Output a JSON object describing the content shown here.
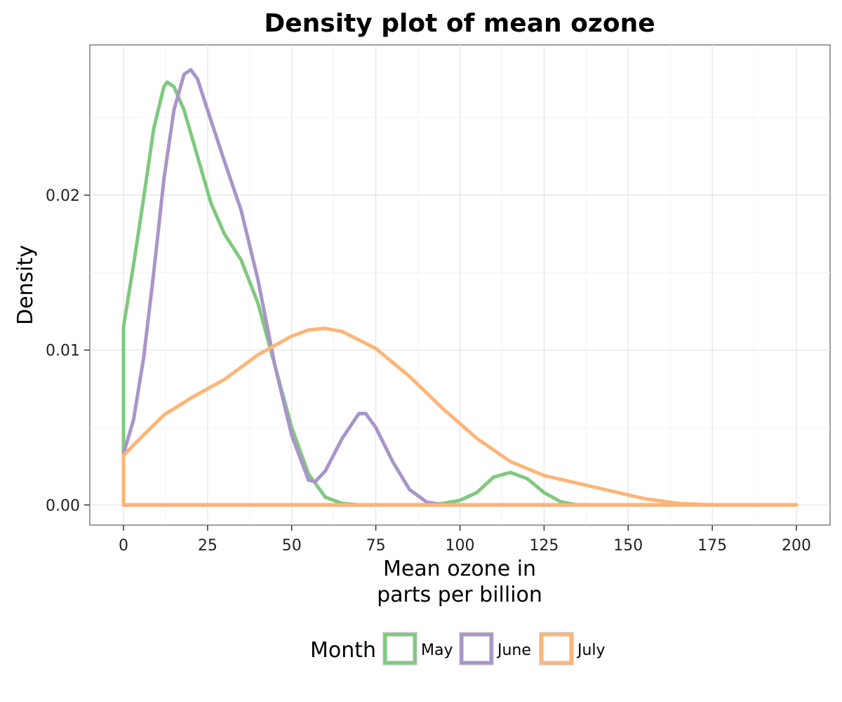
{
  "chart_data": {
    "type": "line",
    "title": "Density plot of mean ozone",
    "xlabel_lines": [
      "Mean ozone in",
      "parts per billion"
    ],
    "ylabel": "Density",
    "xlim": [
      -10,
      210
    ],
    "ylim": [
      -0.0013,
      0.0297
    ],
    "x_ticks": [
      0,
      25,
      50,
      75,
      100,
      125,
      150,
      175,
      200
    ],
    "x_tick_labels": [
      "0",
      "25",
      "50",
      "75",
      "100",
      "125",
      "150",
      "175",
      "200"
    ],
    "y_ticks": [
      0,
      0.01,
      0.02
    ],
    "y_tick_labels": [
      "0.00",
      "0.01",
      "0.02"
    ],
    "grid": true,
    "legend": {
      "title": "Month",
      "position": "bottom"
    },
    "series": [
      {
        "name": "May",
        "color": "#7fc97f",
        "points": [
          [
            0,
            0
          ],
          [
            0,
            0.0115
          ],
          [
            3,
            0.0155
          ],
          [
            6,
            0.0198
          ],
          [
            9,
            0.0243
          ],
          [
            12,
            0.027
          ],
          [
            13,
            0.0273
          ],
          [
            15,
            0.027
          ],
          [
            18,
            0.0255
          ],
          [
            22,
            0.0225
          ],
          [
            26,
            0.0195
          ],
          [
            30,
            0.0175
          ],
          [
            35,
            0.0158
          ],
          [
            40,
            0.013
          ],
          [
            45,
            0.009
          ],
          [
            50,
            0.005
          ],
          [
            55,
            0.002
          ],
          [
            60,
            0.0005
          ],
          [
            65,
            0.0001
          ],
          [
            70,
            0.0
          ],
          [
            80,
            0.0
          ],
          [
            90,
            0.0
          ],
          [
            95,
            0.0001
          ],
          [
            100,
            0.0003
          ],
          [
            105,
            0.0008
          ],
          [
            110,
            0.0018
          ],
          [
            115,
            0.0021
          ],
          [
            120,
            0.0017
          ],
          [
            125,
            0.0008
          ],
          [
            130,
            0.0002
          ],
          [
            135,
            0.0
          ],
          [
            200,
            0.0
          ],
          [
            0,
            0
          ]
        ]
      },
      {
        "name": "June",
        "color": "#a995c9",
        "points": [
          [
            0,
            0
          ],
          [
            0,
            0.0033
          ],
          [
            3,
            0.0055
          ],
          [
            6,
            0.0095
          ],
          [
            9,
            0.015
          ],
          [
            12,
            0.021
          ],
          [
            15,
            0.0255
          ],
          [
            18,
            0.0278
          ],
          [
            20,
            0.0281
          ],
          [
            22,
            0.0275
          ],
          [
            25,
            0.0255
          ],
          [
            30,
            0.0222
          ],
          [
            35,
            0.019
          ],
          [
            40,
            0.0145
          ],
          [
            45,
            0.009
          ],
          [
            50,
            0.0045
          ],
          [
            55,
            0.0016
          ],
          [
            57,
            0.0015
          ],
          [
            60,
            0.0022
          ],
          [
            65,
            0.0043
          ],
          [
            70,
            0.0059
          ],
          [
            72,
            0.0059
          ],
          [
            75,
            0.005
          ],
          [
            80,
            0.0028
          ],
          [
            85,
            0.001
          ],
          [
            90,
            0.0002
          ],
          [
            95,
            0.0
          ],
          [
            200,
            0.0
          ],
          [
            0,
            0
          ]
        ]
      },
      {
        "name": "July",
        "color": "#fdb577",
        "points": [
          [
            0,
            0
          ],
          [
            0,
            0.0032
          ],
          [
            5,
            0.0043
          ],
          [
            12,
            0.0058
          ],
          [
            20,
            0.0069
          ],
          [
            30,
            0.0081
          ],
          [
            40,
            0.0097
          ],
          [
            50,
            0.0109
          ],
          [
            55,
            0.0113
          ],
          [
            60,
            0.0114
          ],
          [
            65,
            0.0112
          ],
          [
            75,
            0.0101
          ],
          [
            85,
            0.0083
          ],
          [
            95,
            0.0062
          ],
          [
            105,
            0.0043
          ],
          [
            115,
            0.0028
          ],
          [
            125,
            0.0019
          ],
          [
            135,
            0.0014
          ],
          [
            145,
            0.0009
          ],
          [
            155,
            0.0004
          ],
          [
            165,
            0.0001
          ],
          [
            175,
            0.0
          ],
          [
            200,
            0.0
          ],
          [
            0,
            0
          ]
        ]
      }
    ]
  }
}
